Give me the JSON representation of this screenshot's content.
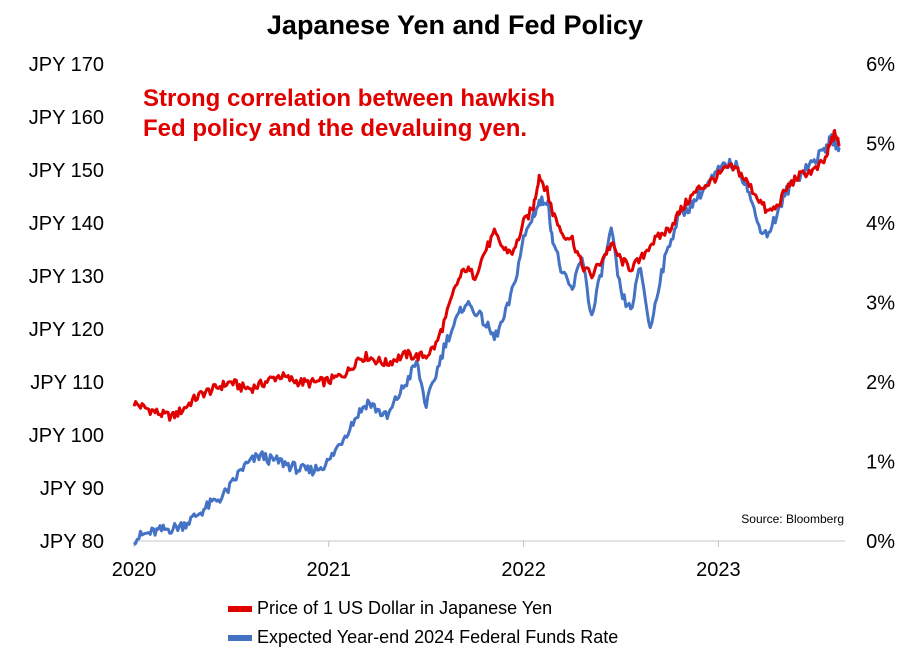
{
  "chart_data": {
    "type": "line",
    "title": "Japanese Yen and Fed Policy",
    "annotation": [
      "Strong correlation between hawkish",
      "Fed policy and the devaluing yen."
    ],
    "source": "Source: Bloomberg",
    "x_labels": [
      "2020",
      "2021",
      "2022",
      "2023"
    ],
    "x_range": [
      2020.0,
      2023.65
    ],
    "y_left": {
      "range": [
        80,
        170
      ],
      "ticks": [
        80,
        90,
        100,
        110,
        120,
        130,
        140,
        150,
        160,
        170
      ],
      "tick_labels": [
        "JPY 80",
        "JPY 90",
        "JPY 100",
        "JPY 110",
        "JPY 120",
        "JPY 130",
        "JPY 140",
        "JPY 150",
        "JPY 160",
        "JPY 170"
      ]
    },
    "y_right": {
      "range": [
        0,
        6
      ],
      "ticks": [
        0,
        1,
        2,
        3,
        4,
        5,
        6
      ],
      "tick_labels": [
        "0%",
        "1%",
        "2%",
        "3%",
        "4%",
        "5%",
        "6%"
      ]
    },
    "series": [
      {
        "name": "Price of 1 US Dollar in Japanese Yen",
        "axis": "left",
        "color": "#e00000",
        "points": [
          [
            2020.0,
            106.0
          ],
          [
            2020.05,
            105.2
          ],
          [
            2020.1,
            104.5
          ],
          [
            2020.15,
            103.8
          ],
          [
            2020.2,
            103.5
          ],
          [
            2020.25,
            104.8
          ],
          [
            2020.3,
            106.5
          ],
          [
            2020.35,
            107.8
          ],
          [
            2020.4,
            108.5
          ],
          [
            2020.45,
            109.3
          ],
          [
            2020.5,
            110.0
          ],
          [
            2020.55,
            109.0
          ],
          [
            2020.6,
            108.8
          ],
          [
            2020.65,
            109.5
          ],
          [
            2020.7,
            110.5
          ],
          [
            2020.75,
            111.2
          ],
          [
            2020.8,
            110.5
          ],
          [
            2020.85,
            110.0
          ],
          [
            2020.9,
            109.8
          ],
          [
            2020.95,
            110.0
          ],
          [
            2021.0,
            110.2
          ],
          [
            2021.05,
            111.0
          ],
          [
            2021.1,
            112.0
          ],
          [
            2021.15,
            114.5
          ],
          [
            2021.2,
            114.8
          ],
          [
            2021.25,
            114.0
          ],
          [
            2021.3,
            113.5
          ],
          [
            2021.35,
            114.5
          ],
          [
            2021.4,
            115.2
          ],
          [
            2021.45,
            114.8
          ],
          [
            2021.5,
            115.0
          ],
          [
            2021.55,
            117.0
          ],
          [
            2021.6,
            122.0
          ],
          [
            2021.65,
            128.0
          ],
          [
            2021.7,
            131.5
          ],
          [
            2021.75,
            130.0
          ],
          [
            2021.8,
            134.5
          ],
          [
            2021.85,
            138.0
          ],
          [
            2021.9,
            135.0
          ],
          [
            2021.95,
            134.5
          ],
          [
            2022.0,
            140.0
          ],
          [
            2022.05,
            143.0
          ],
          [
            2022.08,
            149.0
          ],
          [
            2022.12,
            146.0
          ],
          [
            2022.15,
            142.0
          ],
          [
            2022.2,
            138.0
          ],
          [
            2022.25,
            137.0
          ],
          [
            2022.3,
            132.0
          ],
          [
            2022.35,
            130.0
          ],
          [
            2022.4,
            133.0
          ],
          [
            2022.45,
            136.0
          ],
          [
            2022.5,
            133.0
          ],
          [
            2022.55,
            131.5
          ],
          [
            2022.6,
            133.0
          ],
          [
            2022.65,
            136.0
          ],
          [
            2022.7,
            137.5
          ],
          [
            2022.75,
            139.0
          ],
          [
            2022.8,
            142.0
          ],
          [
            2022.85,
            144.5
          ],
          [
            2022.9,
            146.5
          ],
          [
            2022.95,
            147.5
          ],
          [
            2023.0,
            149.0
          ],
          [
            2023.05,
            150.5
          ],
          [
            2023.1,
            150.0
          ],
          [
            2023.15,
            147.5
          ],
          [
            2023.2,
            145.0
          ],
          [
            2023.25,
            142.0
          ],
          [
            2023.3,
            143.0
          ],
          [
            2023.35,
            146.5
          ],
          [
            2023.4,
            148.5
          ],
          [
            2023.45,
            149.5
          ],
          [
            2023.5,
            150.0
          ],
          [
            2023.55,
            152.0
          ],
          [
            2023.58,
            155.5
          ],
          [
            2023.6,
            157.0
          ],
          [
            2023.62,
            154.5
          ]
        ]
      },
      {
        "name": "Expected Year-end 2024 Federal Funds Rate",
        "axis": "right",
        "color": "#4472c4",
        "points": [
          [
            2020.0,
            0.02
          ],
          [
            2020.05,
            0.08
          ],
          [
            2020.1,
            0.11
          ],
          [
            2020.15,
            0.14
          ],
          [
            2020.2,
            0.16
          ],
          [
            2020.25,
            0.2
          ],
          [
            2020.3,
            0.28
          ],
          [
            2020.35,
            0.38
          ],
          [
            2020.4,
            0.48
          ],
          [
            2020.45,
            0.55
          ],
          [
            2020.5,
            0.7
          ],
          [
            2020.55,
            0.9
          ],
          [
            2020.6,
            1.0
          ],
          [
            2020.65,
            1.08
          ],
          [
            2020.7,
            1.02
          ],
          [
            2020.75,
            1.0
          ],
          [
            2020.8,
            0.95
          ],
          [
            2020.85,
            0.9
          ],
          [
            2020.9,
            0.88
          ],
          [
            2020.95,
            0.92
          ],
          [
            2021.0,
            1.0
          ],
          [
            2021.05,
            1.2
          ],
          [
            2021.1,
            1.4
          ],
          [
            2021.15,
            1.6
          ],
          [
            2021.2,
            1.75
          ],
          [
            2021.25,
            1.65
          ],
          [
            2021.3,
            1.55
          ],
          [
            2021.35,
            1.8
          ],
          [
            2021.4,
            2.0
          ],
          [
            2021.45,
            2.25
          ],
          [
            2021.5,
            1.7
          ],
          [
            2021.55,
            2.1
          ],
          [
            2021.6,
            2.5
          ],
          [
            2021.65,
            2.75
          ],
          [
            2021.7,
            3.0
          ],
          [
            2021.75,
            2.9
          ],
          [
            2021.8,
            2.75
          ],
          [
            2021.85,
            2.55
          ],
          [
            2021.9,
            2.8
          ],
          [
            2021.95,
            3.2
          ],
          [
            2022.0,
            3.8
          ],
          [
            2022.05,
            4.1
          ],
          [
            2022.08,
            4.25
          ],
          [
            2022.12,
            4.3
          ],
          [
            2022.15,
            3.8
          ],
          [
            2022.2,
            3.35
          ],
          [
            2022.25,
            3.15
          ],
          [
            2022.3,
            3.6
          ],
          [
            2022.35,
            2.8
          ],
          [
            2022.4,
            3.4
          ],
          [
            2022.45,
            3.9
          ],
          [
            2022.5,
            3.1
          ],
          [
            2022.55,
            2.9
          ],
          [
            2022.6,
            3.45
          ],
          [
            2022.65,
            2.65
          ],
          [
            2022.7,
            3.3
          ],
          [
            2022.75,
            3.75
          ],
          [
            2022.8,
            4.1
          ],
          [
            2022.85,
            4.2
          ],
          [
            2022.9,
            4.35
          ],
          [
            2022.95,
            4.5
          ],
          [
            2023.0,
            4.65
          ],
          [
            2023.05,
            4.75
          ],
          [
            2023.1,
            4.7
          ],
          [
            2023.15,
            4.45
          ],
          [
            2023.2,
            4.0
          ],
          [
            2023.25,
            3.85
          ],
          [
            2023.3,
            4.1
          ],
          [
            2023.35,
            4.4
          ],
          [
            2023.4,
            4.55
          ],
          [
            2023.45,
            4.7
          ],
          [
            2023.5,
            4.8
          ],
          [
            2023.55,
            4.95
          ],
          [
            2023.58,
            5.05
          ],
          [
            2023.6,
            5.0
          ],
          [
            2023.62,
            4.95
          ]
        ]
      }
    ]
  }
}
